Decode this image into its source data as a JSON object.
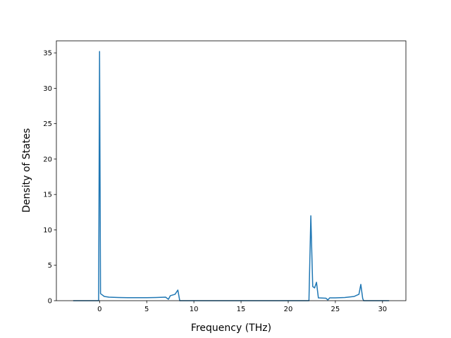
{
  "chart_data": {
    "type": "line",
    "x_label": "Frequency (THz)",
    "y_label": "Density of States",
    "x": [
      -2.8,
      -0.1,
      0.0,
      0.1,
      0.5,
      1,
      2,
      3,
      5,
      6,
      7,
      7.3,
      7.5,
      8,
      8.3,
      8.5,
      10,
      20,
      22.2,
      22.4,
      22.6,
      22.8,
      23.0,
      23.2,
      24,
      24.2,
      24.4,
      25,
      26,
      27,
      27.5,
      27.7,
      27.9,
      28,
      30.7
    ],
    "series": [
      {
        "color": "#1f77b4",
        "values": [
          0,
          0,
          35.2,
          1.0,
          0.6,
          0.5,
          0.45,
          0.42,
          0.42,
          0.45,
          0.5,
          0.2,
          0.7,
          0.9,
          1.5,
          0,
          0,
          0,
          0,
          12.0,
          2.0,
          1.8,
          2.6,
          0.4,
          0.35,
          0.1,
          0.4,
          0.4,
          0.45,
          0.6,
          0.9,
          2.3,
          0.3,
          0,
          0
        ]
      }
    ],
    "xlim": [
      -4.58,
      32.48
    ],
    "ylim": [
      0,
      36.7
    ],
    "xticks": [
      0,
      5,
      10,
      15,
      20,
      25,
      30
    ],
    "yticks": [
      0,
      5,
      10,
      15,
      20,
      25,
      30,
      35
    ]
  }
}
